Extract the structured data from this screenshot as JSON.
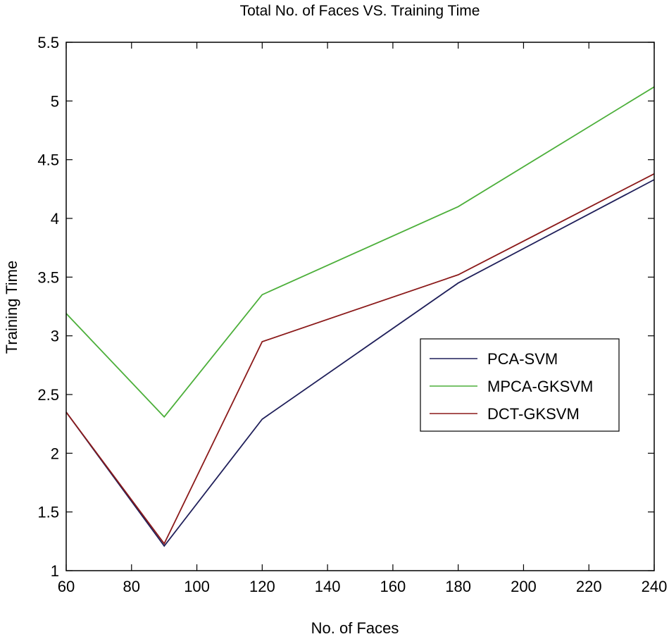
{
  "chart_data": {
    "type": "line",
    "title": "Total No. of Faces VS. Training Time",
    "xlabel": "No. of Faces",
    "ylabel": "Training Time",
    "xlim": [
      60,
      240
    ],
    "ylim": [
      1,
      5.5
    ],
    "xticks": [
      60,
      80,
      100,
      120,
      140,
      160,
      180,
      200,
      220,
      240
    ],
    "yticks": [
      1,
      1.5,
      2,
      2.5,
      3,
      3.5,
      4,
      4.5,
      5,
      5.5
    ],
    "xtick_labels": [
      "60",
      "80",
      "100",
      "120",
      "140",
      "160",
      "180",
      "200",
      "220",
      "240"
    ],
    "ytick_labels": [
      "1",
      "1.5",
      "2",
      "2.5",
      "3",
      "3.5",
      "4",
      "4.5",
      "5",
      "5.5"
    ],
    "grid": false,
    "legend_position": "right",
    "series": [
      {
        "name": "PCA-SVM",
        "color": "#1f1f5a",
        "x": [
          60,
          90,
          120,
          180,
          240
        ],
        "values": [
          2.35,
          1.21,
          2.29,
          3.45,
          4.33
        ]
      },
      {
        "name": "MPCA-GKSVM",
        "color": "#4caf3a",
        "x": [
          60,
          90,
          120,
          180,
          240
        ],
        "values": [
          3.19,
          2.31,
          3.35,
          4.1,
          5.12
        ]
      },
      {
        "name": "DCT-GKSVM",
        "color": "#8b1a1a",
        "x": [
          60,
          90,
          120,
          180,
          240
        ],
        "values": [
          2.35,
          1.23,
          2.95,
          3.52,
          4.38
        ]
      }
    ]
  }
}
